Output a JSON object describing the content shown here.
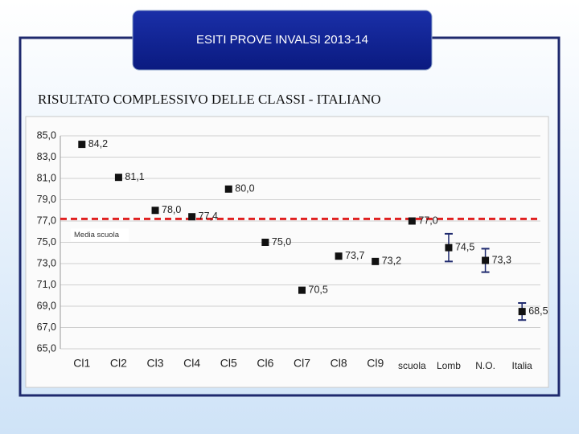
{
  "chart_data": {
    "type": "scatter",
    "header": "ESITI PROVE INVALSI 2013-14",
    "title": "RISULTATO COMPLESSIVO DELLE CLASSI - ITALIANO",
    "categories": [
      "Cl1",
      "Cl2",
      "Cl3",
      "Cl4",
      "Cl5",
      "Cl6",
      "Cl7",
      "Cl8",
      "Cl9",
      "scuola",
      "Lomb",
      "N.O.",
      "Italia"
    ],
    "values": [
      84.2,
      81.1,
      78.0,
      77.4,
      80.0,
      75.0,
      70.5,
      73.7,
      73.2,
      77.0,
      74.5,
      73.3,
      68.5
    ],
    "value_labels": [
      "84,2",
      "81,1",
      "78,0",
      "77,4",
      "80,0",
      "75,0",
      "70,5",
      "73,7",
      "73,2",
      "77,0",
      "74,5",
      "73,3",
      "68,5"
    ],
    "errors": [
      null,
      null,
      null,
      null,
      null,
      null,
      null,
      null,
      null,
      null,
      1.3,
      1.1,
      0.8
    ],
    "color": "#111111",
    "error_color": "#1f2a6e",
    "reference_line": {
      "value": 77.2,
      "label": "Media scuola",
      "color": "#e02020"
    },
    "ylim": [
      65,
      85
    ],
    "yticks": [
      {
        "value": 65,
        "label": "65,0"
      },
      {
        "value": 67,
        "label": "67,0"
      },
      {
        "value": 69,
        "label": "69,0"
      },
      {
        "value": 71,
        "label": "71,0"
      },
      {
        "value": 73,
        "label": "73,0"
      },
      {
        "value": 75,
        "label": "75,0"
      },
      {
        "value": 77,
        "label": "77,0"
      },
      {
        "value": 79,
        "label": "79,0"
      },
      {
        "value": 81,
        "label": "81,0"
      },
      {
        "value": 83,
        "label": "83,0"
      },
      {
        "value": 85,
        "label": "85,0"
      }
    ],
    "grid": true
  }
}
